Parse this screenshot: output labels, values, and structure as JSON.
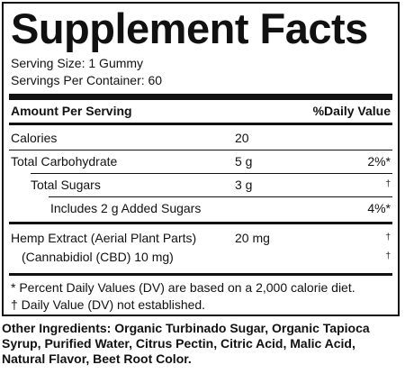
{
  "panel": {
    "title": "Supplement Facts",
    "serving_size": "Serving Size: 1 Gummy",
    "servings_per_container": "Servings Per Container: 60",
    "header": {
      "amount_label": "Amount Per Serving",
      "dv_label": "%Daily Value"
    },
    "rows": [
      {
        "name": "Calories",
        "amount": "20",
        "dv": ""
      },
      {
        "name": "Total Carbohydrate",
        "amount": "5 g",
        "dv": "2%*"
      },
      {
        "name": "Total Sugars",
        "amount": "3 g",
        "dv": "†"
      },
      {
        "name": "Includes 2 g Added Sugars",
        "amount": "",
        "dv": "4%*"
      },
      {
        "name": "Hemp Extract (Aerial Plant Parts)",
        "amount": "20 mg",
        "dv": "†"
      },
      {
        "name": "(Cannabidiol (CBD) 10 mg)",
        "amount": "",
        "dv": "†"
      }
    ],
    "footnotes": [
      "* Percent Daily Values (DV) are based on a 2,000 calorie diet.",
      "† Daily Value (DV) not established."
    ]
  },
  "ingredients": {
    "label": "Other Ingredients:",
    "text": "Organic Turbinado Sugar, Organic Tapioca Syrup, Purified Water, Citrus Pectin, Citric Acid, Malic Acid, Natural Flavor, Beet Root Color."
  }
}
